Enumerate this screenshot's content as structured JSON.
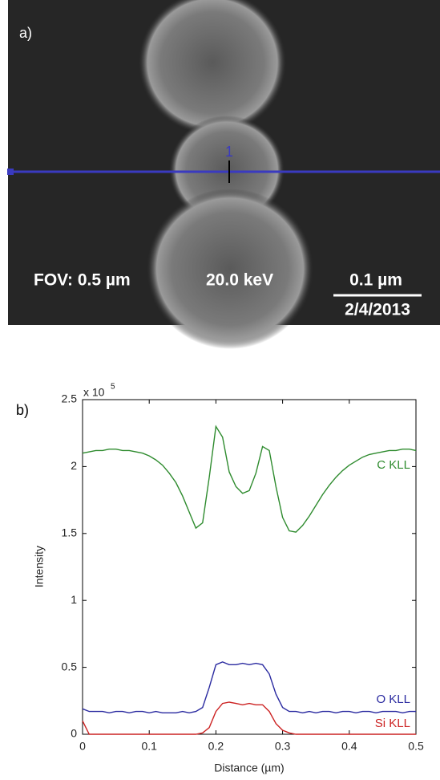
{
  "image_panel": {
    "label": "a)",
    "marker": "1",
    "fov": "FOV: 0.5 µm",
    "energy": "20.0 keV",
    "scale": "0.1 µm",
    "date": "2/4/2013"
  },
  "chart_data": {
    "type": "line",
    "panel_label": "b)",
    "x_label": "Distance (µm)",
    "y_label": "Intensity",
    "y_multiplier": {
      "base": "x 10",
      "exponent": "5"
    },
    "xlim": [
      0,
      0.5
    ],
    "xticks": [
      0,
      0.1,
      0.2,
      0.3,
      0.4,
      0.5
    ],
    "ylim": [
      0,
      2.5
    ],
    "yticks": [
      0,
      0.5,
      1,
      1.5,
      2,
      2.5
    ],
    "x": [
      0,
      0.01,
      0.02,
      0.03,
      0.04,
      0.05,
      0.06,
      0.07,
      0.08,
      0.09,
      0.1,
      0.11,
      0.12,
      0.13,
      0.14,
      0.15,
      0.16,
      0.17,
      0.18,
      0.19,
      0.2,
      0.21,
      0.22,
      0.23,
      0.24,
      0.25,
      0.26,
      0.27,
      0.28,
      0.29,
      0.3,
      0.31,
      0.32,
      0.33,
      0.34,
      0.35,
      0.36,
      0.37,
      0.38,
      0.39,
      0.4,
      0.41,
      0.42,
      0.43,
      0.44,
      0.45,
      0.46,
      0.47,
      0.48,
      0.49,
      0.5
    ],
    "series": [
      {
        "name": "C KLL",
        "color": "#2e8b2e",
        "values": [
          2.1,
          2.11,
          2.12,
          2.12,
          2.13,
          2.13,
          2.12,
          2.12,
          2.11,
          2.1,
          2.08,
          2.05,
          2.01,
          1.95,
          1.88,
          1.78,
          1.66,
          1.54,
          1.58,
          1.92,
          2.3,
          2.22,
          1.96,
          1.85,
          1.8,
          1.82,
          1.95,
          2.15,
          2.12,
          1.85,
          1.62,
          1.52,
          1.51,
          1.56,
          1.63,
          1.71,
          1.79,
          1.86,
          1.92,
          1.97,
          2.01,
          2.04,
          2.07,
          2.09,
          2.1,
          2.11,
          2.12,
          2.12,
          2.13,
          2.13,
          2.12
        ]
      },
      {
        "name": "O KLL",
        "color": "#2a2aa0",
        "values": [
          0.19,
          0.17,
          0.17,
          0.17,
          0.16,
          0.17,
          0.17,
          0.16,
          0.17,
          0.17,
          0.16,
          0.17,
          0.16,
          0.16,
          0.16,
          0.17,
          0.16,
          0.17,
          0.2,
          0.35,
          0.52,
          0.54,
          0.52,
          0.52,
          0.53,
          0.52,
          0.53,
          0.52,
          0.45,
          0.3,
          0.2,
          0.17,
          0.17,
          0.16,
          0.17,
          0.16,
          0.17,
          0.17,
          0.16,
          0.17,
          0.17,
          0.16,
          0.17,
          0.17,
          0.16,
          0.17,
          0.17,
          0.17,
          0.16,
          0.17,
          0.17
        ]
      },
      {
        "name": "Si KLL",
        "color": "#cc2222",
        "values": [
          0.1,
          0,
          0,
          0,
          0,
          0,
          0,
          0,
          0,
          0,
          0,
          0,
          0,
          0,
          0,
          0,
          0,
          0,
          0.01,
          0.05,
          0.17,
          0.23,
          0.24,
          0.23,
          0.22,
          0.23,
          0.22,
          0.22,
          0.17,
          0.08,
          0.03,
          0.01,
          0,
          0,
          0,
          0,
          0,
          0,
          0,
          0,
          0,
          0,
          0,
          0,
          0,
          0,
          0,
          0,
          0,
          0,
          0
        ]
      }
    ]
  }
}
